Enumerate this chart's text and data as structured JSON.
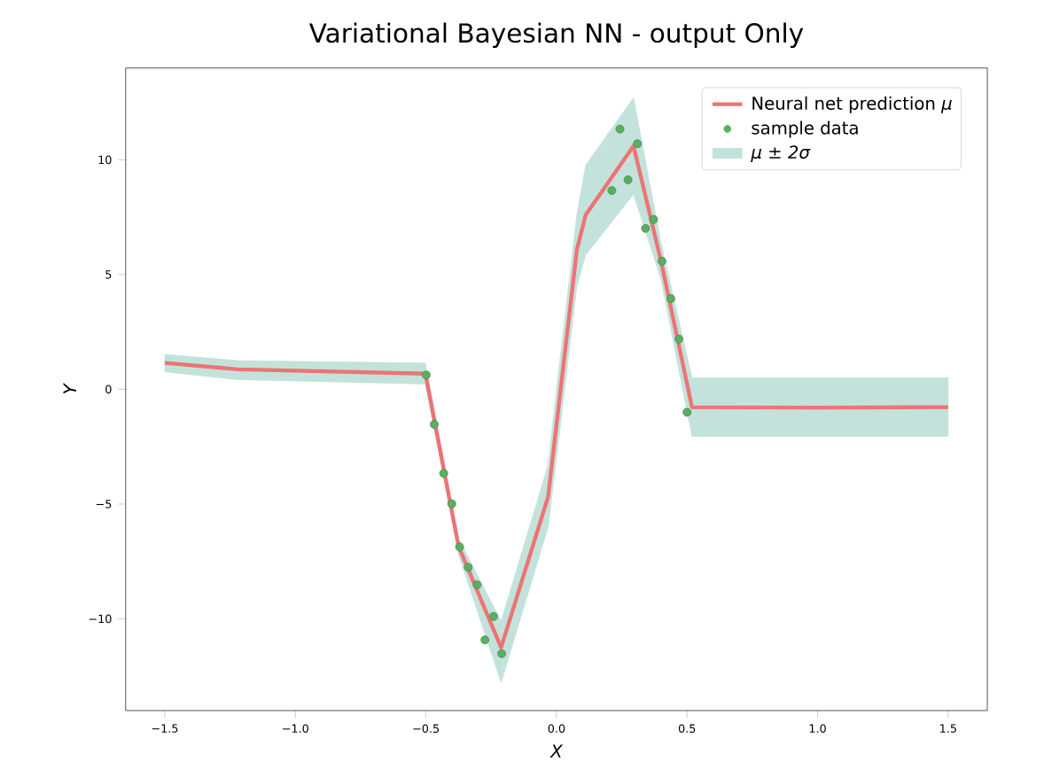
{
  "chart_data": {
    "type": "line",
    "title": "Variational Bayesian NN - output Only",
    "xlabel": "X",
    "ylabel": "Y",
    "xlim": [
      -1.65,
      1.65
    ],
    "ylim": [
      -14,
      14
    ],
    "xticks": [
      {
        "value": -1.5,
        "label": "−1.5"
      },
      {
        "value": -1.0,
        "label": "−1.0"
      },
      {
        "value": -0.5,
        "label": "−0.5"
      },
      {
        "value": 0.0,
        "label": "0.0"
      },
      {
        "value": 0.5,
        "label": "0.5"
      },
      {
        "value": 1.0,
        "label": "1.0"
      },
      {
        "value": 1.5,
        "label": "1.5"
      }
    ],
    "yticks": [
      {
        "value": -10,
        "label": "−10"
      },
      {
        "value": -5,
        "label": "−5"
      },
      0,
      5,
      10
    ],
    "legend": "top right",
    "annotations": [
      "μ ± 2σ"
    ],
    "series": [
      {
        "name": "Neural net prediction *μ*",
        "color": "#ec7474",
        "x": [
          -1.5,
          -1.22,
          -0.502,
          -0.375,
          -0.212,
          -0.032,
          0.0,
          0.078,
          0.112,
          0.295,
          0.4,
          0.519,
          1.0,
          1.5
        ],
        "values": [
          1.15,
          0.87,
          0.68,
          -6.84,
          -11.25,
          -4.68,
          -1.55,
          6.08,
          7.6,
          10.6,
          5.6,
          -0.78,
          -0.8,
          -0.78
        ],
        "lower": [
          0.76,
          0.42,
          0.23,
          -7.2,
          -12.78,
          -6.0,
          -3.0,
          4.5,
          5.85,
          8.5,
          4.8,
          -2.05,
          -2.05,
          -2.05
        ],
        "upper": [
          1.52,
          1.25,
          1.14,
          -6.5,
          -10.1,
          -3.3,
          0.0,
          7.6,
          9.77,
          12.7,
          6.4,
          0.5,
          0.5,
          0.5
        ]
      },
      {
        "type": "scatter",
        "name": "sample data",
        "color": "#5aae61",
        "marker": "circle",
        "x": [
          -0.499,
          -0.468,
          -0.432,
          -0.401,
          -0.371,
          -0.338,
          -0.304,
          -0.241,
          -0.274,
          -0.21,
          0.243,
          0.31,
          0.274,
          0.212,
          0.372,
          0.341,
          0.404,
          0.438,
          0.469,
          0.5
        ],
        "values": [
          0.62,
          -1.53,
          -3.66,
          -4.99,
          -6.87,
          -7.76,
          -8.52,
          -9.9,
          -10.92,
          -11.52,
          11.34,
          10.7,
          9.13,
          8.66,
          7.4,
          7.01,
          5.58,
          3.95,
          2.19,
          -1.0
        ]
      }
    ]
  }
}
